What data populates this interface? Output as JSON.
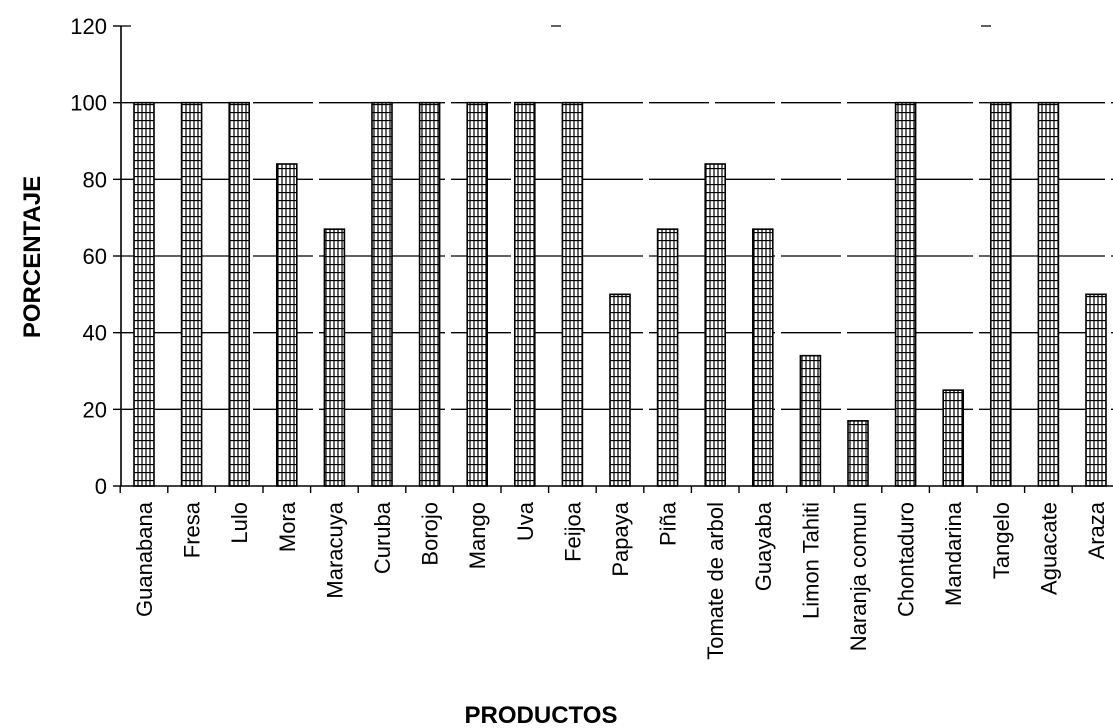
{
  "chart_data": {
    "type": "bar",
    "xlabel": "PRODUCTOS",
    "ylabel": "PORCENTAJE",
    "ylim": [
      0,
      120
    ],
    "yticks": [
      0,
      20,
      40,
      60,
      80,
      100,
      120
    ],
    "grid": true,
    "categories": [
      "Guanabana",
      "Fresa",
      "Lulo",
      "Mora",
      "Maracuya",
      "Curuba",
      "Borojo",
      "Mango",
      "Uva",
      "Feijoa",
      "Papaya",
      "Piña",
      "Tomate de arbol",
      "Guayaba",
      "Limon Tahiti",
      "Naranja comun",
      "Chontaduro",
      "Mandarina",
      "Tangelo",
      "Aguacate",
      "Araza"
    ],
    "values": [
      100,
      100,
      100,
      84,
      67,
      100,
      100,
      100,
      100,
      100,
      50,
      67,
      84,
      67,
      34,
      17,
      100,
      25,
      100,
      100,
      50
    ],
    "bar_pattern": "hatched",
    "colors": {
      "bar_fill": "#ffffff",
      "bar_stroke": "#000000",
      "grid": "#000000"
    }
  }
}
